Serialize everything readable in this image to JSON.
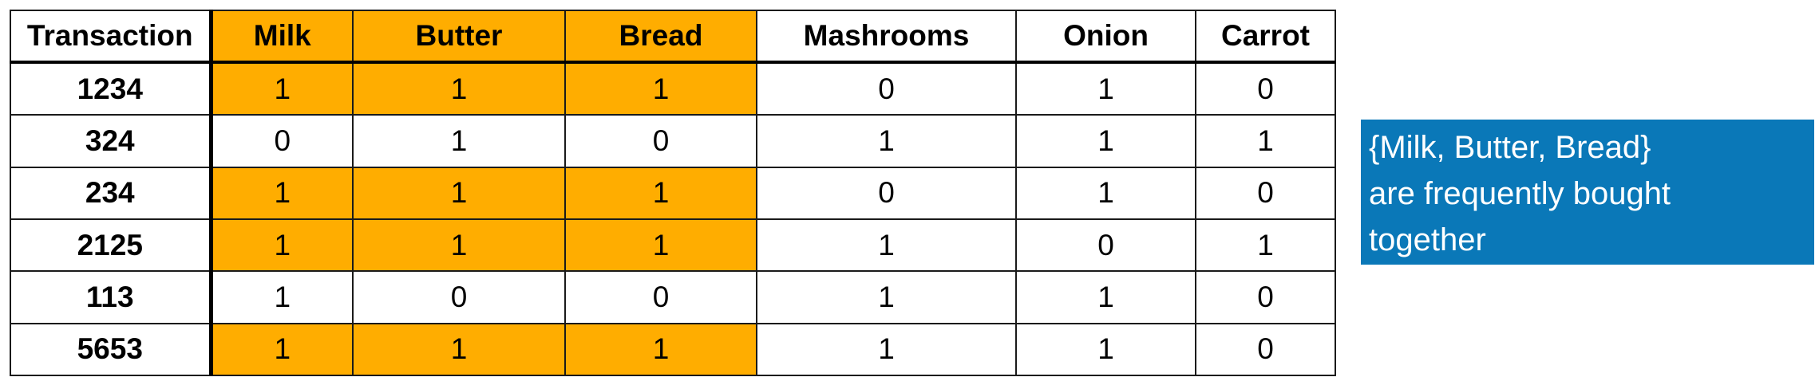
{
  "table": {
    "columns": [
      "Transaction",
      "Milk",
      "Butter",
      "Bread",
      "Mashrooms",
      "Onion",
      "Carrot"
    ],
    "highlighted_columns": [
      "Milk",
      "Butter",
      "Bread"
    ],
    "rows": [
      {
        "id": "1234",
        "cells": [
          "1",
          "1",
          "1",
          "0",
          "1",
          "0"
        ],
        "highlighted": true
      },
      {
        "id": "324",
        "cells": [
          "0",
          "1",
          "0",
          "1",
          "1",
          "1"
        ],
        "highlighted": false
      },
      {
        "id": "234",
        "cells": [
          "1",
          "1",
          "1",
          "0",
          "1",
          "0"
        ],
        "highlighted": true
      },
      {
        "id": "2125",
        "cells": [
          "1",
          "1",
          "1",
          "1",
          "0",
          "1"
        ],
        "highlighted": true
      },
      {
        "id": "113",
        "cells": [
          "1",
          "0",
          "0",
          "1",
          "1",
          "0"
        ],
        "highlighted": false
      },
      {
        "id": "5653",
        "cells": [
          "1",
          "1",
          "1",
          "1",
          "1",
          "0"
        ],
        "highlighted": true
      }
    ]
  },
  "callout": {
    "lines": [
      "{Milk, Butter, Bread}",
      "are frequently bought",
      "together"
    ]
  },
  "colors": {
    "highlight": "#FFAD00",
    "callout_background": "#0A78B8",
    "callout_text": "#FFFFFF",
    "grid": "#1A1A1A"
  }
}
